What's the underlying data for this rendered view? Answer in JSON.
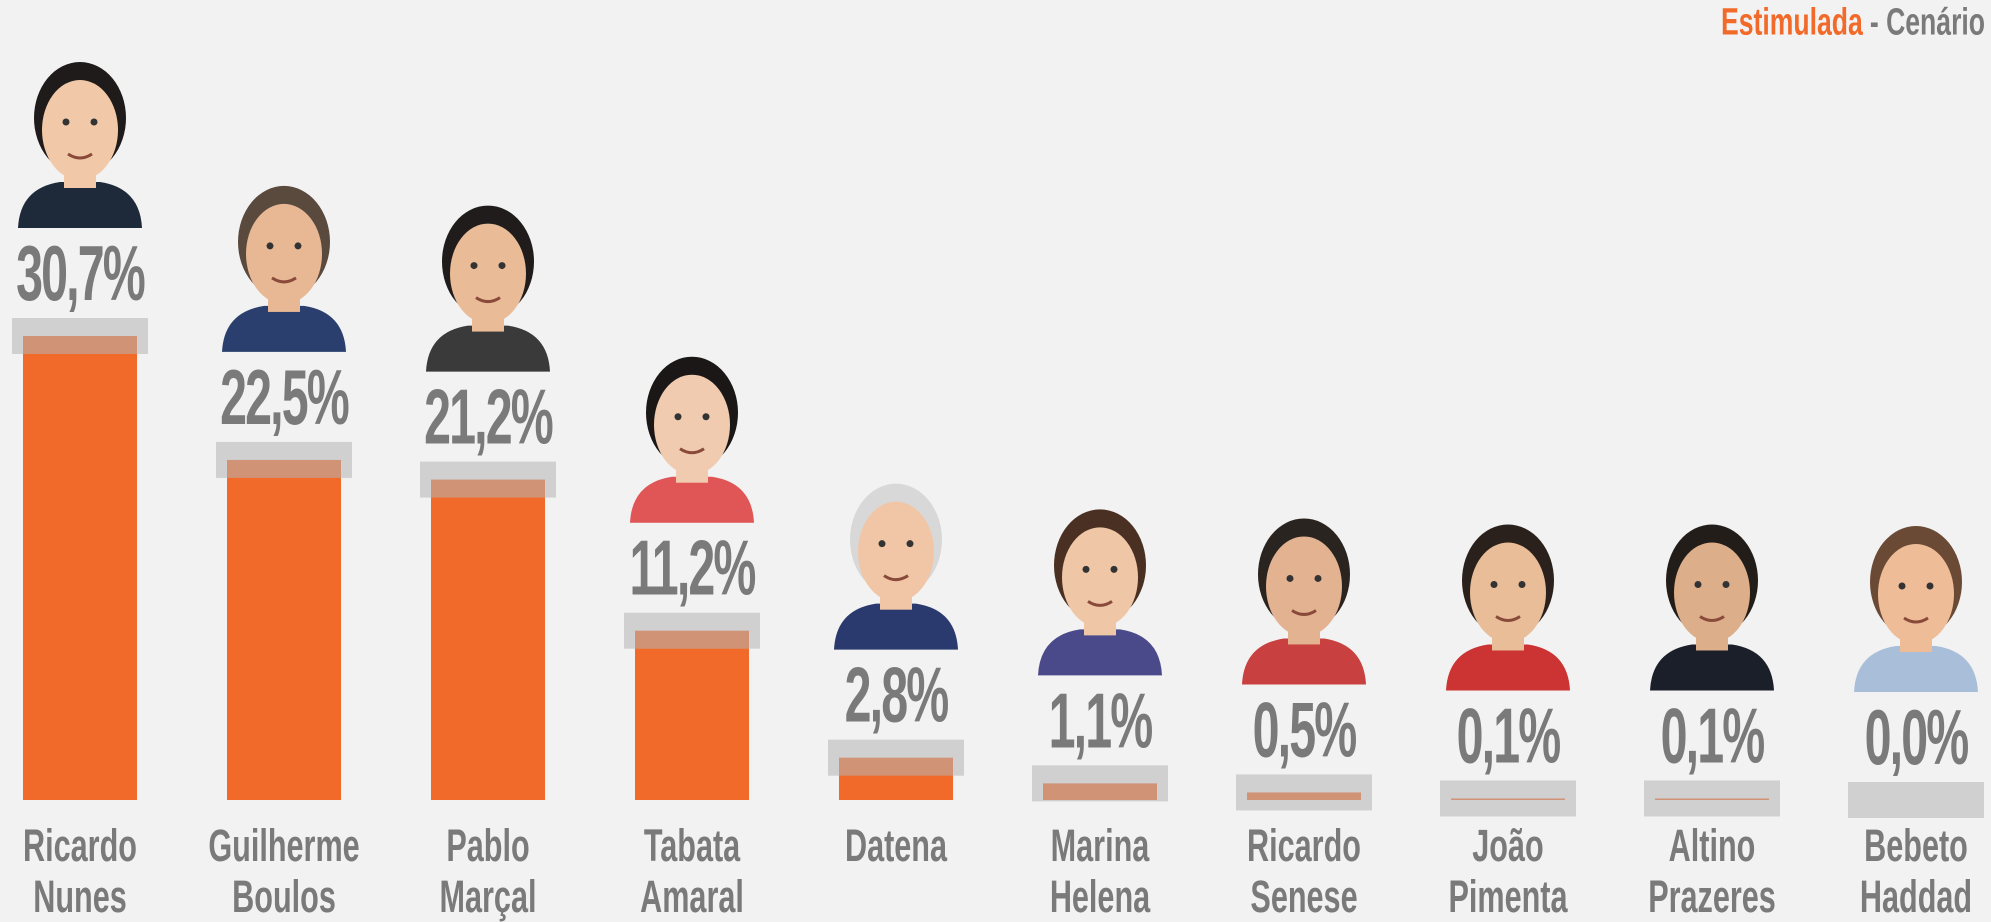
{
  "chart_data": {
    "type": "bar",
    "subtitle_highlight": "Estimulada",
    "subtitle": "- Cenário",
    "categories": [
      "Ricardo Nunes",
      "Guilherme Boulos",
      "Pablo Marçal",
      "Tabata Amaral",
      "Datena",
      "Marina Helena",
      "Ricardo Senese",
      "João Pimenta",
      "Altino Prazeres",
      "Bebeto Haddad"
    ],
    "values": [
      30.7,
      22.5,
      21.2,
      11.2,
      2.8,
      1.1,
      0.5,
      0.1,
      0.1,
      0.0
    ],
    "value_labels": [
      "30,7%",
      "22,5%",
      "21,2%",
      "11,2%",
      "2,8%",
      "1,1%",
      "0,5%",
      "0,1%",
      "0,1%",
      "0,0%"
    ],
    "color": "#f26a2a",
    "ylim": [
      0,
      35
    ]
  }
}
